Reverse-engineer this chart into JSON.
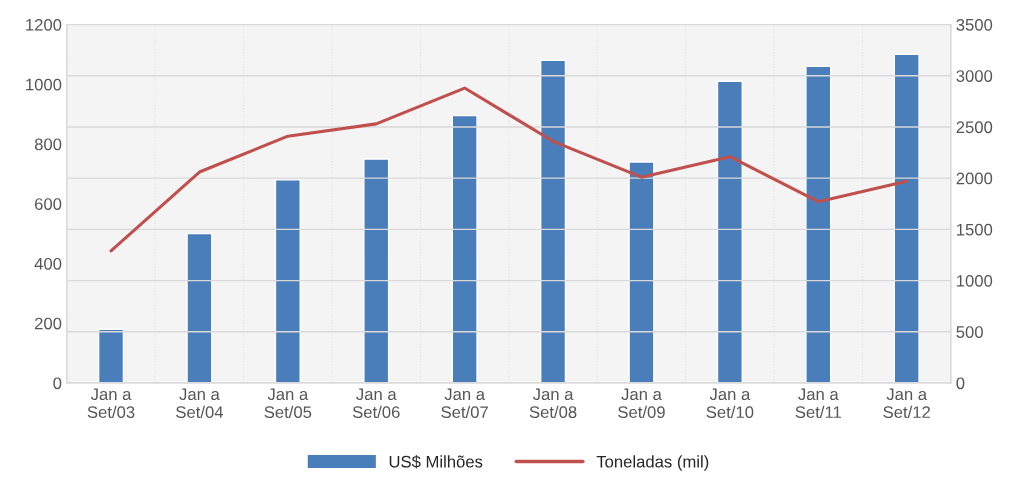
{
  "chart_data": {
    "type": "bar",
    "categories": [
      "Jan a\nSet/03",
      "Jan a\nSet/04",
      "Jan a\nSet/05",
      "Jan a\nSet/06",
      "Jan a\nSet/07",
      "Jan a\nSet/08",
      "Jan a\nSet/09",
      "Jan a\nSet/10",
      "Jan a\nSet/11",
      "Jan a\nSet/12"
    ],
    "series": [
      {
        "name": "US$ Milhões",
        "color": "#4a7ebb",
        "values": [
          180,
          500,
          680,
          750,
          895,
          1080,
          740,
          1010,
          1060,
          1100
        ]
      },
      {
        "name": "Toneladas (mil)",
        "type": "line",
        "axis": "y2",
        "color": "#c0504d",
        "values": [
          1290,
          2060,
          2410,
          2530,
          2880,
          2360,
          2010,
          2210,
          1770,
          1970
        ]
      }
    ],
    "ylim": [
      0,
      1200
    ],
    "yticks": [
      0,
      200,
      400,
      600,
      800,
      1000,
      1200
    ],
    "y2lim": [
      0,
      3500
    ],
    "y2ticks": [
      0,
      500,
      1000,
      1500,
      2000,
      2500,
      3000,
      3500
    ],
    "grid": true,
    "legend": "bottom",
    "marker": "none",
    "line_style": "solid"
  }
}
